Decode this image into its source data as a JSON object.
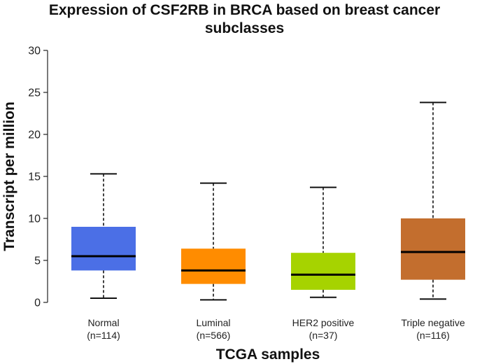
{
  "chart_data": {
    "type": "boxplot",
    "title_lines": [
      "Expression of CSF2RB in BRCA based on breast cancer",
      "subclasses"
    ],
    "xlabel": "TCGA samples",
    "ylabel": "Transcript per million",
    "ylim": [
      0,
      30
    ],
    "yticks": [
      "0",
      "5",
      "10",
      "15",
      "20",
      "25",
      "30"
    ],
    "grid": false,
    "groups": [
      {
        "name": "Normal",
        "count_label": "(n=114)",
        "color": "#4b6fe6",
        "min": 0.5,
        "q1": 3.8,
        "median": 5.5,
        "q3": 9.0,
        "max": 15.3
      },
      {
        "name": "Luminal",
        "count_label": "(n=566)",
        "color": "#ff8c00",
        "min": 0.3,
        "q1": 2.2,
        "median": 3.8,
        "q3": 6.4,
        "max": 14.2
      },
      {
        "name": "HER2 positive",
        "count_label": "(n=37)",
        "color": "#a6d300",
        "min": 0.6,
        "q1": 1.5,
        "median": 3.3,
        "q3": 5.9,
        "max": 13.7
      },
      {
        "name": "Triple negative",
        "count_label": "(n=116)",
        "color": "#c36e2e",
        "min": 0.4,
        "q1": 2.7,
        "median": 6.0,
        "q3": 10.0,
        "max": 23.8
      }
    ]
  }
}
